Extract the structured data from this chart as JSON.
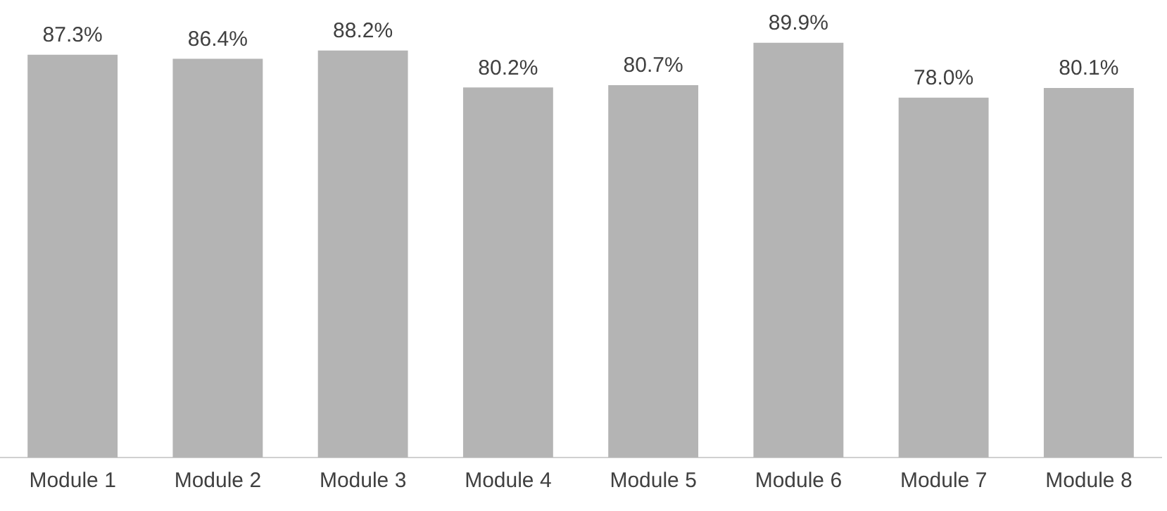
{
  "chart_data": {
    "type": "bar",
    "categories": [
      "Module 1",
      "Module 2",
      "Module 3",
      "Module 4",
      "Module 5",
      "Module 6",
      "Module 7",
      "Module 8"
    ],
    "values": [
      87.3,
      86.4,
      88.2,
      80.2,
      80.7,
      89.9,
      78.0,
      80.1
    ],
    "value_labels": [
      "87.3%",
      "86.4%",
      "88.2%",
      "80.2%",
      "80.7%",
      "89.9%",
      "78.0%",
      "80.1%"
    ],
    "color": "#b4b4b4",
    "grid": false,
    "legend": false
  }
}
